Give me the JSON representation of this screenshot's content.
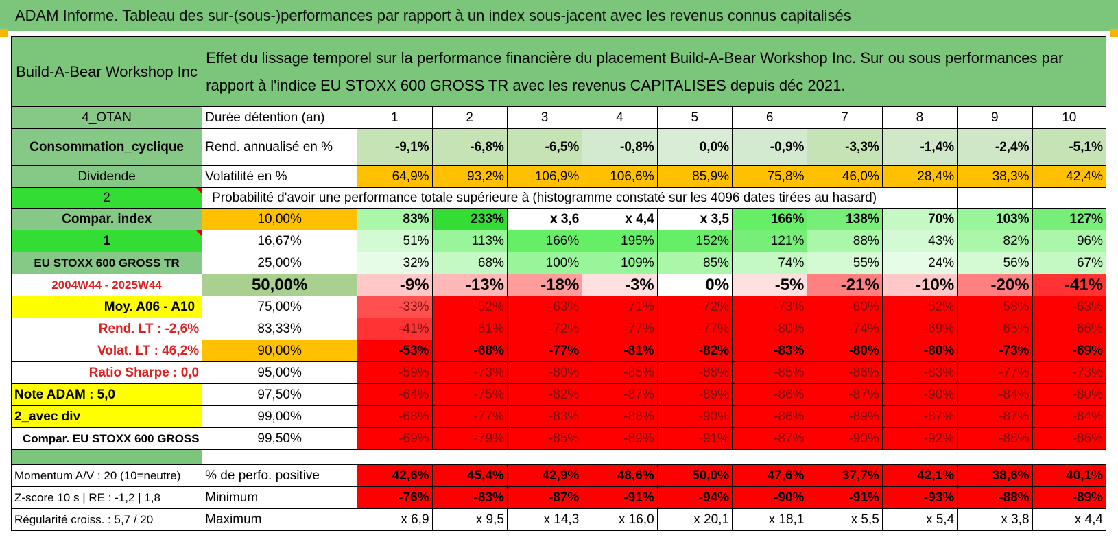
{
  "title": "ADAM Informe. Tableau des sur-(sous-)performances par rapport à un index sous-jacent avec les revenus connus capitalisés",
  "header": {
    "company": "Build-A-Bear Workshop Inc",
    "description": "Effet du lissage temporel sur la performance financière du placement Build-A-Bear Workshop Inc. Sur ou sous performances par rapport à l'indice EU STOXX 600 GROSS TR avec les revenus CAPITALISES depuis déc 2021."
  },
  "sidebar": {
    "sector_code": "4_OTAN",
    "sector": "Consommation_cyclique",
    "dividend_label": "Dividende",
    "dividend_value": "2",
    "compar_label": "Compar. index",
    "compar_value": "1",
    "index_name": "EU STOXX 600 GROSS TR",
    "period": "2004W44 - 2025W44",
    "moy": "Moy. A06 - A10",
    "rend_lt": "Rend. LT :    -2,6%",
    "volat_lt": "Volat. LT :    46,2%",
    "sharpe": "Ratio Sharpe :    0,0",
    "note": "Note ADAM : 5,0",
    "div_mode": "2_avec div",
    "compar_full": "Compar. EU STOXX 600 GROSS TR"
  },
  "table": {
    "duration_label": "Durée détention (an)",
    "years": [
      "1",
      "2",
      "3",
      "4",
      "5",
      "6",
      "7",
      "8",
      "9",
      "10"
    ],
    "rend_label": "Rend. annualisé en %",
    "rend": [
      "-9,1%",
      "-6,8%",
      "-6,5%",
      "-0,8%",
      "0,0%",
      "-0,9%",
      "-3,3%",
      "-1,4%",
      "-2,4%",
      "-5,1%"
    ],
    "vol_label": "Volatilité en %",
    "vol": [
      "64,9%",
      "93,2%",
      "106,9%",
      "106,6%",
      "85,9%",
      "75,8%",
      "46,0%",
      "28,4%",
      "38,3%",
      "42,4%"
    ],
    "prob_label": "Probabilité d'avoir une performance totale supérieure à (histogramme constaté sur les 4096 dates tirées au hasard)",
    "rows": [
      {
        "pct": "10,00%",
        "cells": [
          "83%",
          "233%",
          "x 3,6",
          "x 4,4",
          "x 3,5",
          "166%",
          "138%",
          "70%",
          "103%",
          "127%"
        ]
      },
      {
        "pct": "16,67%",
        "cells": [
          "51%",
          "113%",
          "166%",
          "195%",
          "152%",
          "121%",
          "88%",
          "43%",
          "82%",
          "96%"
        ]
      },
      {
        "pct": "25,00%",
        "cells": [
          "32%",
          "68%",
          "100%",
          "109%",
          "85%",
          "74%",
          "55%",
          "24%",
          "56%",
          "67%"
        ]
      },
      {
        "pct": "50,00%",
        "cells": [
          "-9%",
          "-13%",
          "-18%",
          "-3%",
          "0%",
          "-5%",
          "-21%",
          "-10%",
          "-20%",
          "-41%"
        ]
      },
      {
        "pct": "75,00%",
        "cells": [
          "-33%",
          "-52%",
          "-63%",
          "-71%",
          "-72%",
          "-73%",
          "-60%",
          "-52%",
          "-58%",
          "-63%"
        ]
      },
      {
        "pct": "83,33%",
        "cells": [
          "-41%",
          "-61%",
          "-72%",
          "-77%",
          "-77%",
          "-80%",
          "-74%",
          "-69%",
          "-65%",
          "-66%"
        ]
      },
      {
        "pct": "90,00%",
        "cells": [
          "-53%",
          "-68%",
          "-77%",
          "-81%",
          "-82%",
          "-83%",
          "-80%",
          "-80%",
          "-73%",
          "-69%"
        ]
      },
      {
        "pct": "95,00%",
        "cells": [
          "-59%",
          "-73%",
          "-80%",
          "-85%",
          "-88%",
          "-85%",
          "-86%",
          "-83%",
          "-77%",
          "-73%"
        ]
      },
      {
        "pct": "97,50%",
        "cells": [
          "-64%",
          "-75%",
          "-82%",
          "-87%",
          "-89%",
          "-86%",
          "-87%",
          "-90%",
          "-84%",
          "-80%"
        ]
      },
      {
        "pct": "99,00%",
        "cells": [
          "-68%",
          "-77%",
          "-83%",
          "-88%",
          "-90%",
          "-86%",
          "-89%",
          "-87%",
          "-87%",
          "-84%"
        ]
      },
      {
        "pct": "99,50%",
        "cells": [
          "-69%",
          "-79%",
          "-85%",
          "-89%",
          "-91%",
          "-87%",
          "-90%",
          "-92%",
          "-88%",
          "-86%"
        ]
      }
    ],
    "footer": [
      {
        "left": "Momentum A/V : 20 (10=neutre)",
        "label": "% de perfo. positive",
        "cells": [
          "42,6%",
          "45,4%",
          "42,9%",
          "48,6%",
          "50,0%",
          "47,6%",
          "37,7%",
          "42,1%",
          "38,6%",
          "40,1%"
        ]
      },
      {
        "left": "Z-score 10 s | RE : -1,2 | 1,8",
        "label": "Minimum",
        "cells": [
          "-76%",
          "-83%",
          "-87%",
          "-91%",
          "-94%",
          "-90%",
          "-91%",
          "-93%",
          "-88%",
          "-89%"
        ]
      },
      {
        "left": "Régularité croiss. : 5,7 / 20",
        "label": "Maximum",
        "cells": [
          "x 6,9",
          "x 9,5",
          "x 14,3",
          "x 16,0",
          "x 20,1",
          "x 18,1",
          "x 5,5",
          "x 5,4",
          "x 3,8",
          "x 4,4"
        ]
      }
    ]
  },
  "colors": {
    "green_header": "#7cc67c",
    "label_green": "#86c886",
    "bright_green": "#33dd33",
    "yellow": "#ffff00",
    "orange": "#ffc000",
    "red": "#ff0000",
    "olive_green": "#a9d08e"
  }
}
